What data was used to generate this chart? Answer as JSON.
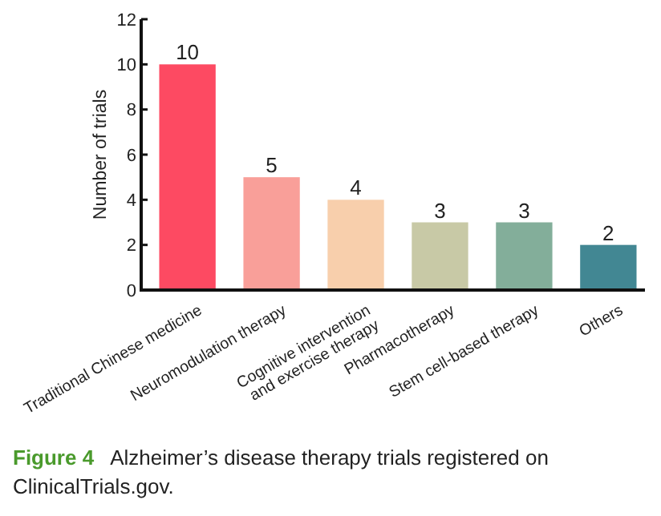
{
  "chart_data": {
    "type": "bar",
    "ylabel": "Number of trials",
    "categories": [
      "Traditional Chinese medicine",
      "Neuromodulation therapy",
      "Cognitive intervention\nand exercise therapy",
      "Pharmacotherapy",
      "Stem cell-based therapy",
      "Others"
    ],
    "values": [
      10,
      5,
      4,
      3,
      3,
      2
    ],
    "colors": [
      "#fd4a62",
      "#f99f99",
      "#f8cfac",
      "#c8c9a6",
      "#83ae9a",
      "#428793"
    ],
    "ylim": [
      0,
      12
    ],
    "yticks": [
      0,
      2,
      4,
      6,
      8,
      10,
      12
    ],
    "data_labels": true,
    "grid": false,
    "annotations": [
      "Figure 4",
      "Alzheimer’s disease therapy trials registered on ClinicalTrials.gov."
    ]
  }
}
